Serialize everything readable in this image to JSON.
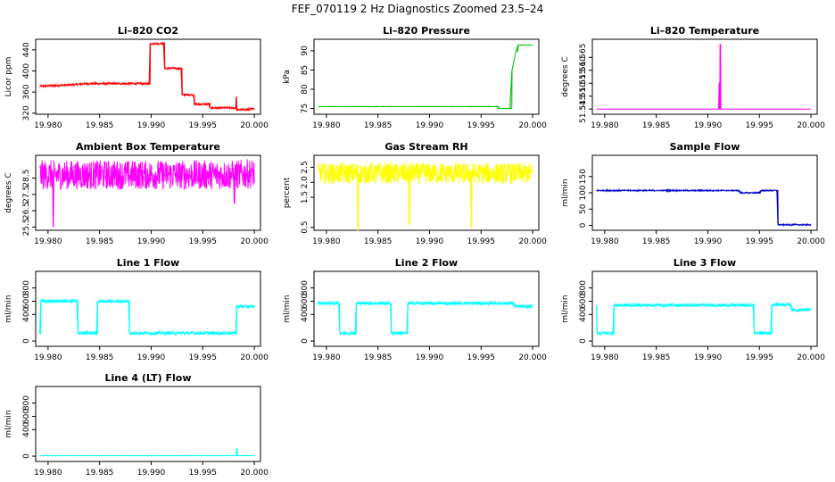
{
  "page_title": "FEF_070119  2 Hz Diagnostics Zoomed 23.5–24",
  "chart_data": [
    {
      "type": "line",
      "title": "Li–820 CO2",
      "xlabel": "",
      "ylabel": "Licor ppm",
      "xlim": [
        19.9788,
        20.0006
      ],
      "ylim": [
        318,
        460
      ],
      "xticks": [
        "19.980",
        "19.985",
        "19.990",
        "19.995",
        "20.000"
      ],
      "yticks": [
        "320",
        "360",
        "400",
        "440"
      ],
      "series": [
        {
          "color": "#ff0000",
          "noise": 2,
          "steps": [
            [
              19.9792,
              371
            ],
            [
              19.9825,
              374
            ],
            [
              19.9836,
              376
            ],
            [
              19.9898,
              376
            ],
            [
              19.9899,
              452
            ],
            [
              19.9912,
              452
            ],
            [
              19.9913,
              405
            ],
            [
              19.9929,
              405
            ],
            [
              19.993,
              355
            ],
            [
              19.9941,
              355
            ],
            [
              19.9942,
              337
            ],
            [
              19.9956,
              337
            ],
            [
              19.9957,
              330
            ],
            [
              19.9982,
              330
            ],
            [
              19.99825,
              350
            ],
            [
              19.9983,
              326
            ],
            [
              20.0,
              328
            ]
          ]
        }
      ]
    },
    {
      "type": "line",
      "title": "Li–820 Pressure",
      "xlabel": "",
      "ylabel": "kPa",
      "xlim": [
        19.9788,
        20.0006
      ],
      "ylim": [
        73.5,
        93
      ],
      "xticks": [
        "19.980",
        "19.985",
        "19.990",
        "19.995",
        "20.000"
      ],
      "yticks": [
        "75",
        "80",
        "85",
        "90"
      ],
      "series": [
        {
          "color": "#00c000",
          "noise": 0.05,
          "steps": [
            [
              19.9792,
              75.5
            ],
            [
              19.9966,
              75.5
            ],
            [
              19.9967,
              75.0
            ],
            [
              19.9978,
              75.0
            ],
            [
              19.998,
              85
            ],
            [
              19.9984,
              90
            ],
            [
              19.9986,
              91.5
            ],
            [
              20.0,
              91.5
            ]
          ]
        }
      ]
    },
    {
      "type": "line",
      "title": "Li–820 Temperature",
      "xlabel": "",
      "ylabel": "degrees C",
      "xlim": [
        19.9788,
        20.0006
      ],
      "ylim": [
        51.543,
        51.572
      ],
      "xticks": [
        "19.980",
        "19.985",
        "19.990",
        "19.995",
        "20.000"
      ],
      "yticks": [
        "51.545",
        "51.550",
        "51.555",
        "51.560",
        "51.565"
      ],
      "series": [
        {
          "color": "#ff00ff",
          "noise": 0,
          "steps": [
            [
              19.9792,
              51.545
            ],
            [
              19.99105,
              51.545
            ],
            [
              19.9911,
              51.555
            ],
            [
              19.99115,
              51.545
            ],
            [
              19.9912,
              51.57
            ],
            [
              19.99125,
              51.545
            ],
            [
              20.0,
              51.545
            ]
          ]
        }
      ]
    },
    {
      "type": "line",
      "title": "Ambient Box Temperature",
      "xlabel": "",
      "ylabel": "degrees C",
      "xlim": [
        19.9788,
        20.0006
      ],
      "ylim": [
        25.3,
        29.9
      ],
      "xticks": [
        "19.980",
        "19.985",
        "19.990",
        "19.995",
        "20.000"
      ],
      "yticks": [
        "25.5",
        "26.5",
        "27.5",
        "28.5"
      ],
      "series": [
        {
          "color": "#ff00ff",
          "noise": 0.9,
          "steps": [
            [
              19.9792,
              28.7
            ],
            [
              19.98045,
              28.7
            ],
            [
              19.9805,
              25.5
            ],
            [
              19.98055,
              28.7
            ],
            [
              19.998,
              28.7
            ],
            [
              19.99805,
              27.0
            ],
            [
              19.9981,
              28.7
            ],
            [
              20.0,
              28.8
            ]
          ]
        }
      ]
    },
    {
      "type": "line",
      "title": "Gas Stream RH",
      "xlabel": "",
      "ylabel": "percent",
      "xlim": [
        19.9788,
        20.0006
      ],
      "ylim": [
        0.4,
        2.9
      ],
      "xticks": [
        "19.980",
        "19.985",
        "19.990",
        "19.995",
        "20.000"
      ],
      "yticks": [
        "0.5",
        "1.5",
        "2.0",
        "2.5"
      ],
      "series": [
        {
          "color": "#ffff00",
          "noise": 0.35,
          "steps": [
            [
              19.9792,
              2.3
            ],
            [
              19.983,
              2.3
            ],
            [
              19.98305,
              0.5
            ],
            [
              19.9831,
              2.3
            ],
            [
              19.988,
              2.3
            ],
            [
              19.98805,
              0.6
            ],
            [
              19.9881,
              2.3
            ],
            [
              19.994,
              2.3
            ],
            [
              19.99405,
              0.5
            ],
            [
              19.9941,
              2.3
            ],
            [
              20.0,
              2.3
            ]
          ]
        }
      ]
    },
    {
      "type": "line",
      "title": "Sample Flow",
      "xlabel": "",
      "ylabel": "ml/min",
      "xlim": [
        19.9788,
        20.0006
      ],
      "ylim": [
        -15,
        215
      ],
      "xticks": [
        "19.980",
        "19.985",
        "19.990",
        "19.995",
        "20.000"
      ],
      "yticks": [
        "0",
        "50",
        "100",
        "150"
      ],
      "series": [
        {
          "color": "#0000cc",
          "noise": 2,
          "steps": [
            [
              19.9792,
              107
            ],
            [
              19.993,
              107
            ],
            [
              19.9931,
              100
            ],
            [
              19.995,
              100
            ],
            [
              19.9951,
              107
            ],
            [
              19.9967,
              107
            ],
            [
              19.9968,
              2
            ],
            [
              20.0,
              2
            ]
          ]
        }
      ]
    },
    {
      "type": "line",
      "title": "Line 1 Flow",
      "xlabel": "",
      "ylabel": "ml/min",
      "xlim": [
        19.9788,
        20.0006
      ],
      "ylim": [
        -80,
        1050
      ],
      "xticks": [
        "19.980",
        "19.985",
        "19.990",
        "19.995",
        "20.000"
      ],
      "yticks": [
        "0",
        "400",
        "600",
        "800"
      ],
      "series": [
        {
          "color": "#00ffff",
          "noise": 25,
          "steps": [
            [
              19.9792,
              120
            ],
            [
              19.9793,
              600
            ],
            [
              19.9828,
              600
            ],
            [
              19.9829,
              120
            ],
            [
              19.9847,
              120
            ],
            [
              19.9848,
              600
            ],
            [
              19.9878,
              600
            ],
            [
              19.9879,
              120
            ],
            [
              19.9982,
              120
            ],
            [
              19.9983,
              520
            ],
            [
              20.0,
              520
            ]
          ]
        }
      ]
    },
    {
      "type": "line",
      "title": "Line 2 Flow",
      "xlabel": "",
      "ylabel": "ml/min",
      "xlim": [
        19.9788,
        20.0006
      ],
      "ylim": [
        -80,
        1050
      ],
      "xticks": [
        "19.980",
        "19.985",
        "19.990",
        "19.995",
        "20.000"
      ],
      "yticks": [
        "0",
        "400",
        "600",
        "800"
      ],
      "series": [
        {
          "color": "#00ffff",
          "noise": 25,
          "steps": [
            [
              19.9792,
              570
            ],
            [
              19.9812,
              570
            ],
            [
              19.9813,
              120
            ],
            [
              19.9828,
              120
            ],
            [
              19.9829,
              570
            ],
            [
              19.9862,
              570
            ],
            [
              19.9863,
              120
            ],
            [
              19.9878,
              120
            ],
            [
              19.9879,
              570
            ],
            [
              19.9981,
              570
            ],
            [
              19.9982,
              520
            ],
            [
              20.0,
              520
            ]
          ]
        }
      ]
    },
    {
      "type": "line",
      "title": "Line 3 Flow",
      "xlabel": "",
      "ylabel": "ml/min",
      "xlim": [
        19.9788,
        20.0006
      ],
      "ylim": [
        -80,
        1050
      ],
      "xticks": [
        "19.980",
        "19.985",
        "19.990",
        "19.995",
        "20.000"
      ],
      "yticks": [
        "0",
        "400",
        "600",
        "800"
      ],
      "series": [
        {
          "color": "#00ffff",
          "noise": 25,
          "steps": [
            [
              19.9792,
              520
            ],
            [
              19.97925,
              120
            ],
            [
              19.9808,
              120
            ],
            [
              19.9809,
              540
            ],
            [
              19.9944,
              540
            ],
            [
              19.9945,
              120
            ],
            [
              19.9961,
              120
            ],
            [
              19.9962,
              550
            ],
            [
              19.998,
              550
            ],
            [
              19.9981,
              470
            ],
            [
              20.0,
              470
            ]
          ]
        }
      ]
    },
    {
      "type": "line",
      "title": "Line 4 (LT) Flow",
      "xlabel": "",
      "ylabel": "ml/min",
      "xlim": [
        19.9788,
        20.0006
      ],
      "ylim": [
        -80,
        1050
      ],
      "xticks": [
        "19.980",
        "19.985",
        "19.990",
        "19.995",
        "20.000"
      ],
      "yticks": [
        "0",
        "400",
        "600",
        "800"
      ],
      "series": [
        {
          "color": "#00ffff",
          "noise": 3,
          "steps": [
            [
              19.9792,
              8
            ],
            [
              19.99825,
              8
            ],
            [
              19.9983,
              120
            ],
            [
              19.99835,
              8
            ],
            [
              20.0,
              8
            ]
          ]
        }
      ]
    }
  ]
}
